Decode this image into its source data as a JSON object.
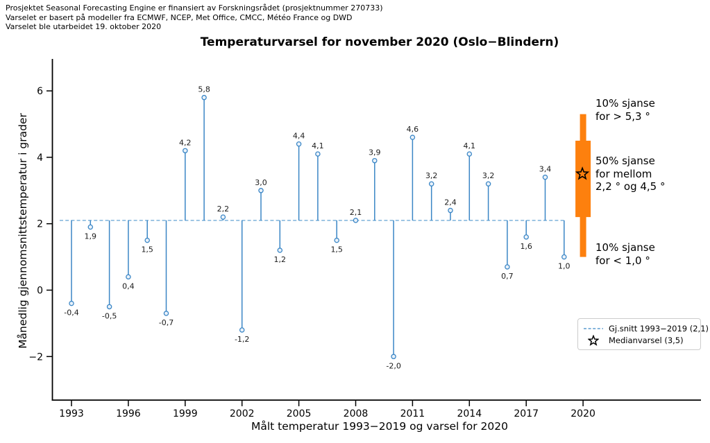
{
  "header": {
    "line1": "Prosjektet Seasonal Forecasting Engine er finansiert av Forskningsrådet (prosjektnummer 270733)",
    "line2": "Varselet er basert på modeller fra ECMWF, NCEP, Met Office, CMCC, Météo France og DWD",
    "line3": "Varselet ble utarbeidet 19. oktober 2020"
  },
  "chart_data": {
    "type": "stem",
    "title": "Temperaturvarsel for november 2020 (Oslo−Blindern)",
    "xlabel": "Målt temperatur 1993−2019 og varsel for 2020",
    "ylabel": "Månedlig gjennomsnittstemperatur i grader",
    "baseline_mean": 2.1,
    "xlim": [
      1992,
      2026
    ],
    "ylim": [
      -3.3,
      6.9
    ],
    "grid": false,
    "legend_position": "lower right",
    "xticks": [
      1993,
      1996,
      1999,
      2002,
      2005,
      2008,
      2011,
      2014,
      2017,
      2020
    ],
    "yticks": [
      {
        "value": 6,
        "label": "6"
      },
      {
        "value": 4,
        "label": "4"
      },
      {
        "value": 2,
        "label": "2"
      },
      {
        "value": 0,
        "label": "0"
      },
      {
        "value": -2,
        "label": "−2"
      }
    ],
    "points": [
      {
        "year": 1993,
        "value": -0.4,
        "label": "-0,4"
      },
      {
        "year": 1994,
        "value": 1.9,
        "label": "1,9"
      },
      {
        "year": 1995,
        "value": -0.5,
        "label": "-0,5"
      },
      {
        "year": 1996,
        "value": 0.4,
        "label": "0,4"
      },
      {
        "year": 1997,
        "value": 1.5,
        "label": "1,5"
      },
      {
        "year": 1998,
        "value": -0.7,
        "label": "-0,7"
      },
      {
        "year": 1999,
        "value": 4.2,
        "label": "4,2"
      },
      {
        "year": 2000,
        "value": 5.8,
        "label": "5,8"
      },
      {
        "year": 2001,
        "value": 2.2,
        "label": "2,2"
      },
      {
        "year": 2002,
        "value": -1.2,
        "label": "-1,2"
      },
      {
        "year": 2003,
        "value": 3.0,
        "label": "3,0"
      },
      {
        "year": 2004,
        "value": 1.2,
        "label": "1,2"
      },
      {
        "year": 2005,
        "value": 4.4,
        "label": "4,4"
      },
      {
        "year": 2006,
        "value": 4.1,
        "label": "4,1"
      },
      {
        "year": 2007,
        "value": 1.5,
        "label": "1,5"
      },
      {
        "year": 2008,
        "value": 2.1,
        "label": "2,1"
      },
      {
        "year": 2009,
        "value": 3.9,
        "label": "3,9"
      },
      {
        "year": 2010,
        "value": -2.0,
        "label": "-2,0"
      },
      {
        "year": 2011,
        "value": 4.6,
        "label": "4,6"
      },
      {
        "year": 2012,
        "value": 3.2,
        "label": "3,2"
      },
      {
        "year": 2013,
        "value": 2.4,
        "label": "2,4"
      },
      {
        "year": 2014,
        "value": 4.1,
        "label": "4,1"
      },
      {
        "year": 2015,
        "value": 3.2,
        "label": "3,2"
      },
      {
        "year": 2016,
        "value": 0.7,
        "label": "0,7"
      },
      {
        "year": 2017,
        "value": 1.6,
        "label": "1,6"
      },
      {
        "year": 2018,
        "value": 3.4,
        "label": "3,4"
      },
      {
        "year": 2019,
        "value": 1.0,
        "label": "1,0"
      }
    ],
    "forecast": {
      "year": 2020,
      "p10": 1.0,
      "p25": 2.2,
      "median": 3.5,
      "p75": 4.5,
      "p90": 5.3
    },
    "annotations": [
      "10% sjanse\nfor > 5,3 °",
      "50% sjanse\nfor mellom\n2,2 ° og 4,5 °",
      "10% sjanse\nfor < 1,0 °"
    ],
    "legend": [
      {
        "symbol": "dashed-line",
        "label": "Gj.snitt 1993−2019 (2,1)"
      },
      {
        "symbol": "star",
        "label": "Medianvarsel (3,5)"
      }
    ],
    "colors": {
      "stem": "#3a86c6",
      "mean_line": "#72abd6",
      "forecast_bar": "#fd800e",
      "star": "#000000",
      "axis": "#000000",
      "text": "#000000"
    }
  }
}
